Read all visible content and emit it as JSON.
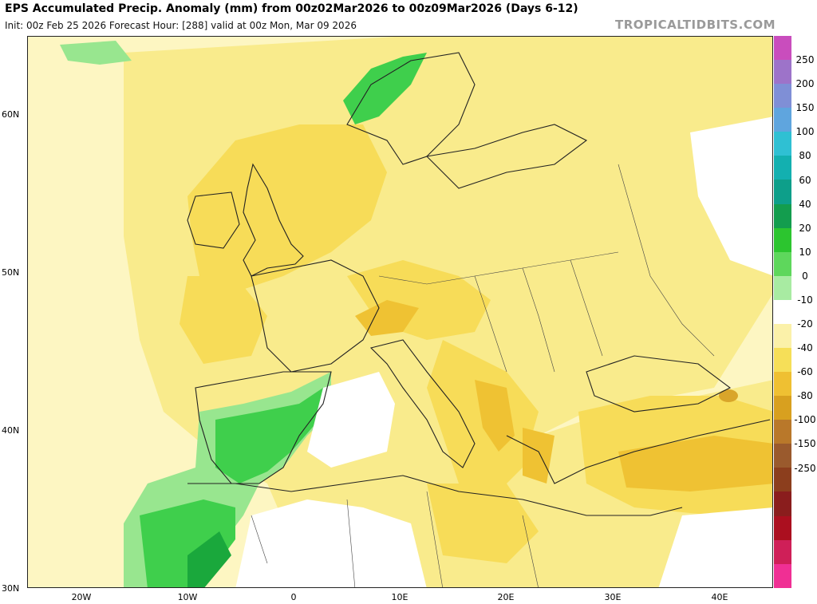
{
  "header": {
    "title": "EPS Accumulated Precip. Anomaly (mm) from 00z02Mar2026 to 00z09Mar2026 (Days 6-12)",
    "subtitle": "Init: 00z Feb 25 2026   Forecast Hour: [288]   valid at 00z Mon, Mar 09 2026",
    "brand": "TROPICALTIDBITS.COM"
  },
  "map": {
    "lat_labels": [
      "60N",
      "50N",
      "40N",
      "30N"
    ],
    "lon_labels": [
      "20W",
      "10W",
      "0",
      "10E",
      "20E",
      "30E",
      "40E"
    ],
    "colors": {
      "sea_pale": "#fdf6c2",
      "weak_neg": "#f9eb8c",
      "neg": "#f7dc58",
      "strong_neg": "#efc233",
      "very_strong_neg": "#d9a52a",
      "weak_pos": "#98e68f",
      "pos": "#3fcf4c",
      "strong_pos": "#1aa83c",
      "no_anom": "#ffffff"
    }
  },
  "colorbar": {
    "labels": [
      "250",
      "200",
      "150",
      "100",
      "80",
      "60",
      "40",
      "20",
      "10",
      "0",
      "-10",
      "-20",
      "-40",
      "-60",
      "-80",
      "-100",
      "-150",
      "-250"
    ],
    "colors": [
      "#c94dbd",
      "#9d73c9",
      "#7f8fd6",
      "#5fa5de",
      "#2fc0d3",
      "#13b0b0",
      "#0d9f8a",
      "#139d4e",
      "#2cc52f",
      "#5ed75c",
      "#a8eba2",
      "#ffffff",
      "#fbf1a9",
      "#f6df58",
      "#efc032",
      "#d8a01f",
      "#b9782a",
      "#9a5a2d",
      "#8c3e1d",
      "#8a1d1d",
      "#ab0f1f",
      "#cf1f58",
      "#f02f94"
    ]
  }
}
